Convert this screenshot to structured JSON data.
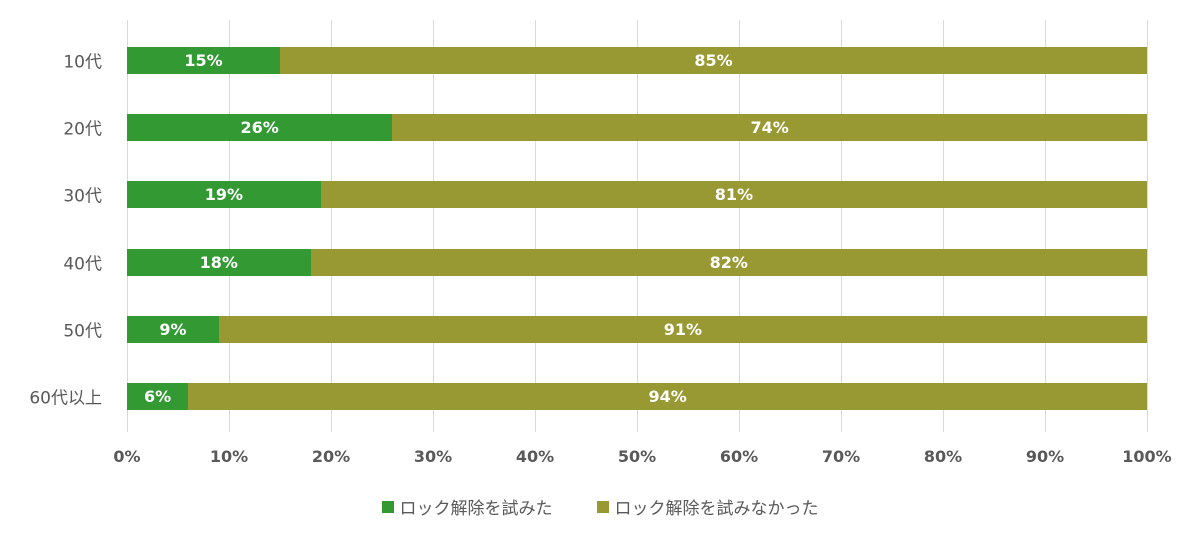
{
  "chart_data": {
    "type": "bar",
    "orientation": "horizontal",
    "stacked": true,
    "categories": [
      "10代",
      "20代",
      "30代",
      "40代",
      "50代",
      "60代以上"
    ],
    "series": [
      {
        "name": "ロック解除を試みた",
        "color": "#339933",
        "values": [
          15,
          26,
          19,
          18,
          9,
          6
        ]
      },
      {
        "name": "ロック解除を試みなかった",
        "color": "#999933",
        "values": [
          85,
          74,
          81,
          82,
          91,
          94
        ]
      }
    ],
    "title": "",
    "xlabel": "",
    "ylabel": "",
    "xlim": [
      0,
      100
    ],
    "xticks": [
      "0%",
      "10%",
      "20%",
      "30%",
      "40%",
      "50%",
      "60%",
      "70%",
      "80%",
      "90%",
      "100%"
    ],
    "grid": true,
    "legend_position": "bottom"
  },
  "labels": {
    "rows": [
      {
        "category": "10代",
        "a": "15%",
        "b": "85%"
      },
      {
        "category": "20代",
        "a": "26%",
        "b": "74%"
      },
      {
        "category": "30代",
        "a": "19%",
        "b": "81%"
      },
      {
        "category": "40代",
        "a": "18%",
        "b": "82%"
      },
      {
        "category": "50代",
        "a": "9%",
        "b": "91%"
      },
      {
        "category": "60代以上",
        "a": "6%",
        "b": "94%"
      }
    ],
    "legend": [
      "ロック解除を試みた",
      "ロック解除を試みなかった"
    ]
  }
}
